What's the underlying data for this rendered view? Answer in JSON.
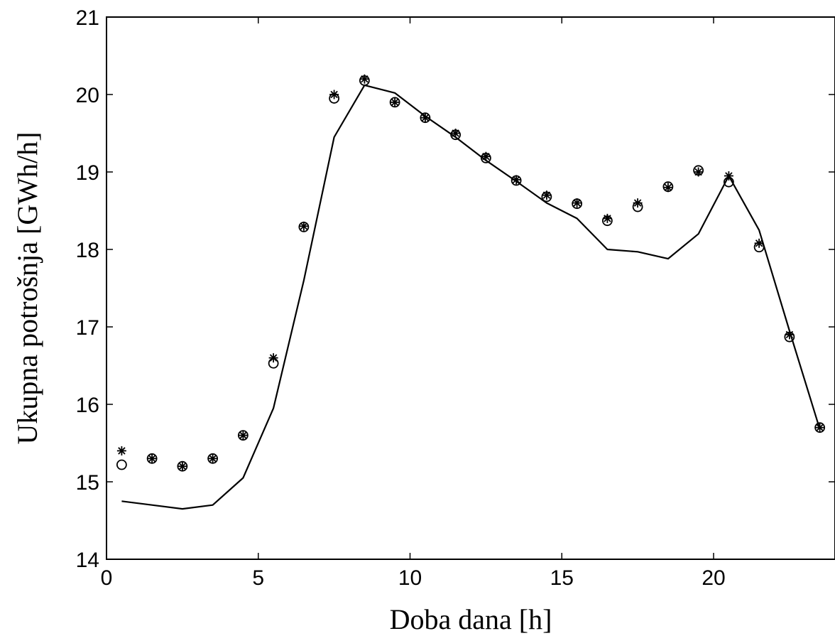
{
  "chart_data": {
    "type": "line",
    "title": "",
    "xlabel": "Doba dana [h]",
    "ylabel": "Ukupna potrošnja [GWh/h]",
    "xlim": [
      0,
      24
    ],
    "ylim": [
      14,
      21
    ],
    "xticks": [
      0,
      5,
      10,
      15,
      20
    ],
    "yticks": [
      14,
      15,
      16,
      17,
      18,
      19,
      20,
      21
    ],
    "grid": false,
    "legend": "none",
    "colors": {
      "line": "#000000",
      "markers": "#000000",
      "background": "#ffffff"
    },
    "series": [
      {
        "style": "line",
        "x": [
          0.5,
          1.5,
          2.5,
          3.5,
          4.5,
          5.5,
          6.5,
          7.5,
          8.5,
          9.5,
          10.5,
          11.5,
          12.5,
          13.5,
          14.5,
          15.5,
          16.5,
          17.5,
          18.5,
          19.5,
          20.5,
          21.5,
          22.5,
          23.5
        ],
        "y": [
          14.75,
          14.7,
          14.65,
          14.7,
          15.05,
          15.95,
          17.6,
          19.45,
          20.12,
          20.02,
          19.72,
          19.45,
          19.15,
          18.88,
          18.6,
          18.4,
          18.0,
          17.97,
          17.88,
          18.2,
          18.95,
          18.25,
          16.95,
          15.68
        ]
      },
      {
        "style": "marker-circle",
        "x": [
          0.5,
          1.5,
          2.5,
          3.5,
          4.5,
          5.5,
          6.5,
          7.5,
          8.5,
          9.5,
          10.5,
          11.5,
          12.5,
          13.5,
          14.5,
          15.5,
          16.5,
          17.5,
          18.5,
          19.5,
          20.5,
          21.5,
          22.5,
          23.5
        ],
        "y": [
          15.22,
          15.3,
          15.2,
          15.3,
          15.6,
          16.53,
          18.29,
          19.95,
          20.18,
          19.9,
          19.7,
          19.48,
          19.18,
          18.89,
          18.68,
          18.59,
          18.37,
          18.55,
          18.81,
          19.02,
          18.87,
          18.03,
          16.87,
          15.7
        ]
      },
      {
        "style": "marker-star",
        "x": [
          0.5,
          1.5,
          2.5,
          3.5,
          4.5,
          5.5,
          6.5,
          7.5,
          8.5,
          9.5,
          10.5,
          11.5,
          12.5,
          13.5,
          14.5,
          15.5,
          16.5,
          17.5,
          18.5,
          19.5,
          20.5,
          21.5,
          22.5,
          23.5
        ],
        "y": [
          15.4,
          15.3,
          15.2,
          15.3,
          15.6,
          16.6,
          18.3,
          20.0,
          20.2,
          19.9,
          19.7,
          19.5,
          19.2,
          18.9,
          18.7,
          18.6,
          18.4,
          18.6,
          18.8,
          19.0,
          18.95,
          18.08,
          16.9,
          15.7
        ]
      }
    ]
  }
}
